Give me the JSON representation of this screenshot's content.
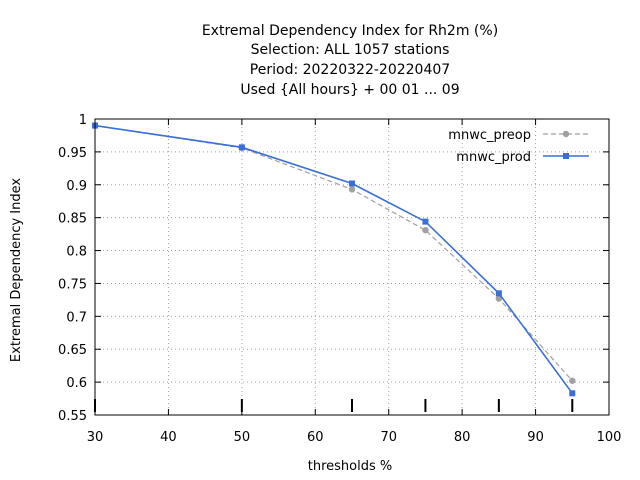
{
  "chart_data": {
    "type": "line",
    "title_lines": [
      "Extremal Dependency Index  for Rh2m (%)",
      "Selection: ALL    1057 stations",
      "Period: 20220322-20220407",
      "Used {All hours} + 00 01 ... 09"
    ],
    "xlabel": "thresholds %",
    "ylabel": "Extremal Dependency Index",
    "xlim": [
      30,
      100
    ],
    "ylim": [
      0.55,
      1
    ],
    "xticks": [
      30,
      40,
      50,
      60,
      70,
      80,
      90,
      100
    ],
    "yticks": [
      0.55,
      0.6,
      0.65,
      0.7,
      0.75,
      0.8,
      0.85,
      0.9,
      0.95,
      1
    ],
    "ytick_labels": [
      "0.55",
      "0.6",
      "0.65",
      "0.7",
      "0.75",
      "0.8",
      "0.85",
      "0.9",
      "0.95",
      "1"
    ],
    "threshold_marks": [
      30,
      50,
      65,
      75,
      85,
      95
    ],
    "grid": true,
    "legend_position": "top-right",
    "series": [
      {
        "name": "mnwc_preop",
        "color": "#a0a0a0",
        "style": "dashed",
        "x": [
          30,
          50,
          65,
          75,
          85,
          95
        ],
        "y": [
          0.99,
          0.956,
          0.893,
          0.831,
          0.727,
          0.602
        ]
      },
      {
        "name": "mnwc_prod",
        "color": "#3a6ed8",
        "style": "solid",
        "x": [
          30,
          50,
          65,
          75,
          85,
          95
        ],
        "y": [
          0.99,
          0.957,
          0.902,
          0.844,
          0.735,
          0.583
        ]
      }
    ]
  }
}
